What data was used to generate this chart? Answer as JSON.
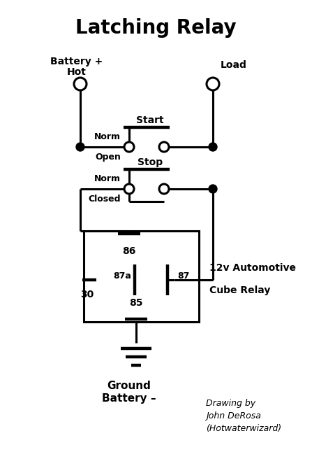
{
  "title": "Latching Relay",
  "title_fontsize": 20,
  "title_fontweight": "bold",
  "bg_color": "#ffffff",
  "line_color": "#000000",
  "lw": 2.2,
  "fig_width": 4.47,
  "fig_height": 6.46,
  "labels": {
    "battery_hot": [
      "Battery +",
      "Hot"
    ],
    "load": "Load",
    "norm_open": [
      "Norm",
      "Open"
    ],
    "start": "Start",
    "norm_closed": [
      "Norm",
      "Closed"
    ],
    "stop": "Stop",
    "pin86": "86",
    "pin87a": "87a",
    "pin87": "87",
    "pin85": "85",
    "pin30": "30",
    "relay_label": [
      "12v Automotive",
      "Cube Relay"
    ],
    "ground": [
      "Ground",
      "Battery –"
    ],
    "credit": [
      "Drawing by",
      "John DeRosa",
      "(Hotwaterwizard)"
    ]
  }
}
